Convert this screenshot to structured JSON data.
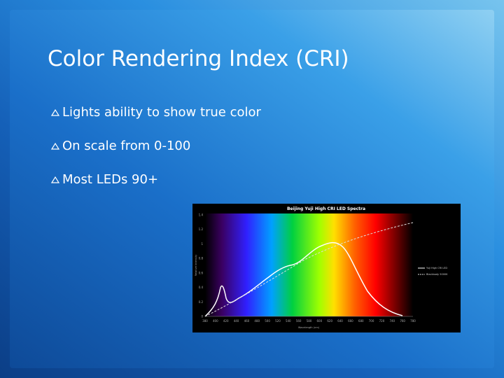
{
  "slide": {
    "title": "Color Rendering Index (CRI)",
    "bullets": [
      "Lights ability to show true color",
      "On scale from 0-100",
      "Most LEDs 90+"
    ],
    "figure": {
      "title": "Beijing Yuji High CRI LED Spectra",
      "y_label": "Relative Intensity",
      "x_label": "Wavelength (nm)",
      "yticks": [
        "0",
        "0.2",
        "0.4",
        "0.6",
        "0.8",
        "1",
        "1.2",
        "1.4"
      ],
      "xticks": [
        "380",
        "400",
        "420",
        "440",
        "460",
        "480",
        "500",
        "520",
        "540",
        "560",
        "580",
        "600",
        "620",
        "640",
        "660",
        "680",
        "700",
        "720",
        "740",
        "760",
        "780"
      ],
      "legend": [
        "Yuji High CRI LED",
        "Blackbody 5000K"
      ]
    }
  }
}
